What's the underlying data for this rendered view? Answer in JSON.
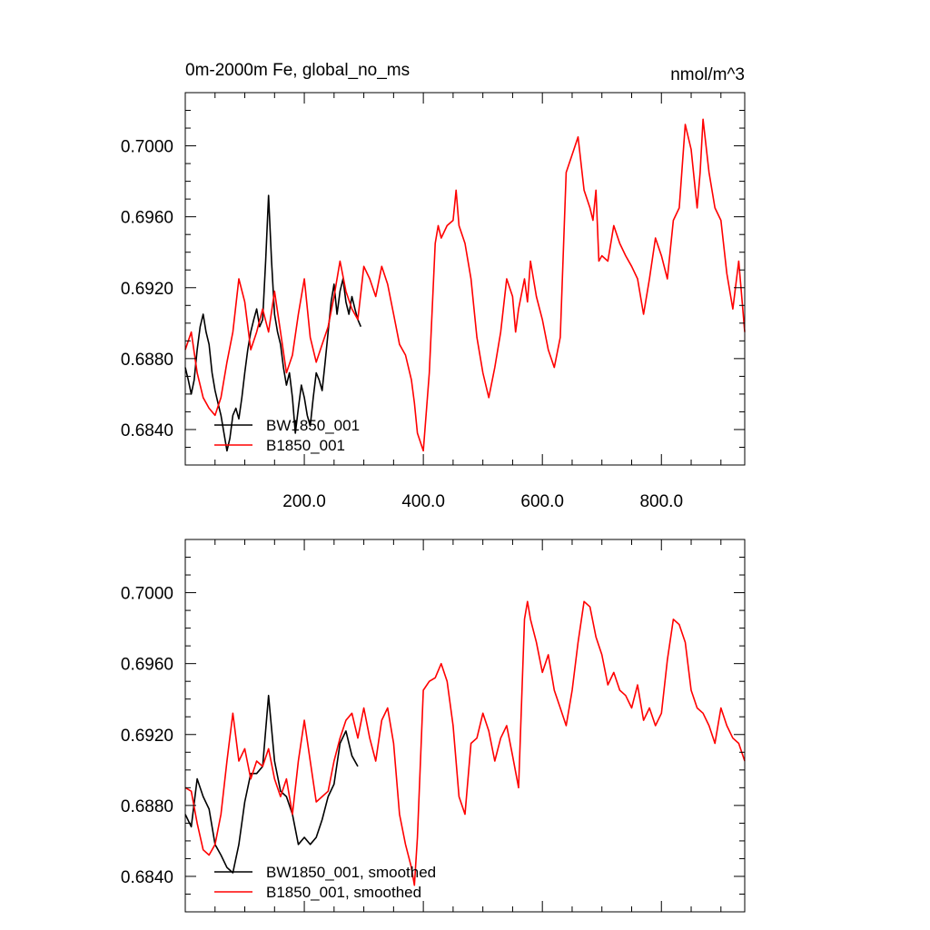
{
  "figure": {
    "title": "0m-2000m Fe, global_no_ms",
    "units": "nmol/m^3"
  },
  "chart_data": [
    {
      "type": "line",
      "panel": "raw",
      "title": "0m-2000m Fe, global_no_ms",
      "units_label": "nmol/m^3",
      "xlabel": "",
      "ylabel": "",
      "xlim": [
        0,
        940
      ],
      "ylim": [
        0.682,
        0.703
      ],
      "x_tick_values": [
        200,
        400,
        600,
        800
      ],
      "x_tick_labels": [
        "200.0",
        "400.0",
        "600.0",
        "800.0"
      ],
      "y_tick_values": [
        0.684,
        0.688,
        0.692,
        0.696,
        0.7
      ],
      "y_tick_labels": [
        "0.6840",
        "0.6880",
        "0.6920",
        "0.6960",
        "0.7000"
      ],
      "grid": false,
      "legend_placement": "bottom-left",
      "series": [
        {
          "name": "BW1850_001",
          "color": "#000000",
          "x": [
            0,
            5,
            10,
            15,
            20,
            25,
            30,
            35,
            40,
            45,
            50,
            55,
            60,
            65,
            70,
            75,
            80,
            85,
            90,
            95,
            100,
            105,
            110,
            115,
            120,
            125,
            130,
            135,
            140,
            145,
            150,
            155,
            160,
            165,
            170,
            175,
            180,
            185,
            190,
            195,
            200,
            205,
            210,
            215,
            220,
            225,
            230,
            235,
            240,
            245,
            250,
            255,
            260,
            265,
            270,
            275,
            280,
            285,
            290,
            295
          ],
          "values": [
            0.6875,
            0.6868,
            0.686,
            0.6868,
            0.6885,
            0.6898,
            0.6905,
            0.6895,
            0.6888,
            0.6872,
            0.6862,
            0.6855,
            0.6848,
            0.6838,
            0.6828,
            0.6835,
            0.6848,
            0.6852,
            0.6846,
            0.6858,
            0.6872,
            0.6885,
            0.6895,
            0.6902,
            0.6908,
            0.6898,
            0.6902,
            0.6935,
            0.6972,
            0.6935,
            0.6905,
            0.6895,
            0.6888,
            0.6875,
            0.6865,
            0.6872,
            0.6858,
            0.6838,
            0.6852,
            0.6865,
            0.6858,
            0.6848,
            0.6842,
            0.6858,
            0.6872,
            0.6868,
            0.6862,
            0.6878,
            0.6895,
            0.6912,
            0.6922,
            0.6905,
            0.6918,
            0.6925,
            0.6912,
            0.6905,
            0.6915,
            0.6908,
            0.6902,
            0.6898
          ]
        },
        {
          "name": "B1850_001",
          "color": "#ff0000",
          "x": [
            0,
            10,
            20,
            30,
            40,
            50,
            60,
            70,
            80,
            90,
            100,
            110,
            120,
            130,
            140,
            150,
            160,
            170,
            180,
            190,
            200,
            210,
            220,
            230,
            240,
            250,
            260,
            270,
            280,
            290,
            300,
            310,
            320,
            330,
            340,
            350,
            360,
            370,
            380,
            385,
            390,
            400,
            410,
            420,
            425,
            430,
            440,
            450,
            455,
            460,
            470,
            480,
            490,
            500,
            510,
            520,
            530,
            540,
            550,
            555,
            560,
            570,
            575,
            580,
            590,
            600,
            610,
            620,
            630,
            640,
            650,
            660,
            670,
            680,
            685,
            690,
            695,
            700,
            710,
            720,
            730,
            740,
            750,
            760,
            770,
            780,
            790,
            800,
            810,
            820,
            830,
            840,
            850,
            860,
            865,
            870,
            880,
            890,
            900,
            910,
            920,
            930,
            940
          ],
          "values": [
            0.6885,
            0.6895,
            0.6872,
            0.6858,
            0.6852,
            0.6848,
            0.6858,
            0.6878,
            0.6895,
            0.6925,
            0.6912,
            0.6885,
            0.6895,
            0.6908,
            0.6895,
            0.6918,
            0.6895,
            0.6872,
            0.6882,
            0.6905,
            0.6925,
            0.6892,
            0.6878,
            0.6888,
            0.6898,
            0.6915,
            0.6935,
            0.6918,
            0.6908,
            0.6902,
            0.6932,
            0.6925,
            0.6915,
            0.6932,
            0.6922,
            0.6905,
            0.6888,
            0.6882,
            0.6868,
            0.6855,
            0.6838,
            0.6828,
            0.6872,
            0.6945,
            0.6955,
            0.6948,
            0.6955,
            0.6958,
            0.6975,
            0.6955,
            0.6945,
            0.6925,
            0.6892,
            0.6872,
            0.6858,
            0.6875,
            0.6895,
            0.6925,
            0.6915,
            0.6895,
            0.6908,
            0.6925,
            0.6912,
            0.6935,
            0.6915,
            0.6902,
            0.6885,
            0.6875,
            0.6892,
            0.6985,
            0.6995,
            0.7005,
            0.6975,
            0.6965,
            0.6958,
            0.6975,
            0.6935,
            0.6938,
            0.6935,
            0.6955,
            0.6945,
            0.6938,
            0.6932,
            0.6925,
            0.6905,
            0.6925,
            0.6948,
            0.6938,
            0.6925,
            0.6958,
            0.6965,
            0.7012,
            0.6998,
            0.6965,
            0.6985,
            0.7015,
            0.6985,
            0.6965,
            0.6958,
            0.6928,
            0.6908,
            0.6935,
            0.6895
          ]
        }
      ]
    },
    {
      "type": "line",
      "panel": "smoothed",
      "title": "",
      "xlabel": "",
      "ylabel": "",
      "xlim": [
        0,
        940
      ],
      "ylim": [
        0.682,
        0.703
      ],
      "x_tick_values": [
        200,
        400,
        600,
        800
      ],
      "x_tick_labels": [],
      "y_tick_values": [
        0.684,
        0.688,
        0.692,
        0.696,
        0.7
      ],
      "y_tick_labels": [
        "0.6840",
        "0.6880",
        "0.6920",
        "0.6960",
        "0.7000"
      ],
      "grid": false,
      "legend_placement": "bottom-left",
      "series": [
        {
          "name": "BW1850_001, smoothed",
          "color": "#000000",
          "x": [
            0,
            10,
            20,
            30,
            40,
            50,
            60,
            70,
            80,
            90,
            100,
            110,
            120,
            130,
            140,
            150,
            160,
            170,
            180,
            190,
            200,
            210,
            220,
            230,
            240,
            250,
            260,
            270,
            280,
            290
          ],
          "values": [
            0.6875,
            0.6868,
            0.6895,
            0.6885,
            0.6878,
            0.6858,
            0.6852,
            0.6845,
            0.6842,
            0.6858,
            0.6882,
            0.6898,
            0.6898,
            0.6902,
            0.6942,
            0.6905,
            0.6888,
            0.6885,
            0.6875,
            0.6858,
            0.6862,
            0.6858,
            0.6862,
            0.6872,
            0.6885,
            0.6892,
            0.6915,
            0.6922,
            0.6908,
            0.6902
          ]
        },
        {
          "name": "B1850_001, smoothed",
          "color": "#ff0000",
          "x": [
            0,
            10,
            20,
            30,
            40,
            50,
            60,
            70,
            80,
            90,
            100,
            110,
            120,
            130,
            140,
            150,
            160,
            170,
            180,
            190,
            200,
            210,
            220,
            230,
            240,
            250,
            260,
            270,
            280,
            290,
            300,
            310,
            320,
            330,
            340,
            350,
            360,
            370,
            380,
            385,
            390,
            400,
            410,
            420,
            430,
            440,
            450,
            460,
            470,
            480,
            490,
            500,
            510,
            520,
            530,
            540,
            550,
            560,
            570,
            575,
            580,
            590,
            600,
            610,
            620,
            630,
            640,
            650,
            660,
            670,
            680,
            690,
            700,
            710,
            720,
            730,
            740,
            750,
            760,
            770,
            780,
            790,
            800,
            810,
            820,
            830,
            840,
            850,
            860,
            870,
            880,
            890,
            900,
            910,
            920,
            930,
            940
          ],
          "values": [
            0.689,
            0.6888,
            0.687,
            0.6855,
            0.6852,
            0.6858,
            0.6875,
            0.6905,
            0.6932,
            0.6905,
            0.6912,
            0.6895,
            0.6905,
            0.6902,
            0.6912,
            0.6895,
            0.6885,
            0.6895,
            0.6875,
            0.6905,
            0.6928,
            0.6905,
            0.6882,
            0.6885,
            0.6888,
            0.6905,
            0.6918,
            0.6928,
            0.6932,
            0.6918,
            0.6935,
            0.6918,
            0.6905,
            0.6928,
            0.6935,
            0.6915,
            0.6875,
            0.6858,
            0.6845,
            0.6835,
            0.6862,
            0.6945,
            0.695,
            0.6952,
            0.696,
            0.695,
            0.6925,
            0.6885,
            0.6875,
            0.6915,
            0.6918,
            0.6932,
            0.6922,
            0.6905,
            0.6918,
            0.6925,
            0.6908,
            0.689,
            0.6985,
            0.6995,
            0.6985,
            0.6972,
            0.6955,
            0.6965,
            0.6945,
            0.6935,
            0.6925,
            0.6945,
            0.6972,
            0.6995,
            0.6992,
            0.6975,
            0.6965,
            0.6948,
            0.6955,
            0.6945,
            0.6942,
            0.6935,
            0.6948,
            0.6928,
            0.6935,
            0.6925,
            0.6932,
            0.6962,
            0.6985,
            0.6982,
            0.6972,
            0.6945,
            0.6935,
            0.6932,
            0.6925,
            0.6915,
            0.6935,
            0.6925,
            0.6918,
            0.6915,
            0.6905
          ]
        }
      ]
    }
  ]
}
